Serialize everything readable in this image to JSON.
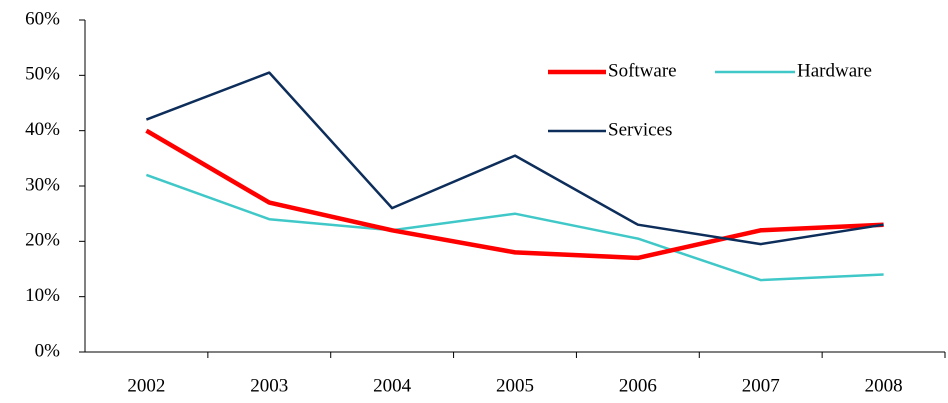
{
  "chart_data": {
    "type": "line",
    "categories": [
      "2002",
      "2003",
      "2004",
      "2005",
      "2006",
      "2007",
      "2008"
    ],
    "series": [
      {
        "name": "Software",
        "color": "#ff0000",
        "values": [
          40,
          27,
          22,
          18,
          17,
          22,
          23
        ]
      },
      {
        "name": "Hardware",
        "color": "#40c8c8",
        "values": [
          32,
          24,
          22,
          25,
          20.5,
          13,
          14
        ]
      },
      {
        "name": "Services",
        "color": "#0d2d5a",
        "values": [
          42,
          50.5,
          26,
          35.5,
          23,
          19.5,
          23
        ]
      }
    ],
    "ylim": [
      0,
      60
    ],
    "yticks": [
      {
        "value": 0,
        "label": "0%"
      },
      {
        "value": 10,
        "label": "10%"
      },
      {
        "value": 20,
        "label": "20%"
      },
      {
        "value": 30,
        "label": "30%"
      },
      {
        "value": 40,
        "label": "40%"
      },
      {
        "value": 50,
        "label": "50%"
      },
      {
        "value": 60,
        "label": "60%"
      }
    ],
    "legend": "top right",
    "grid": false
  }
}
